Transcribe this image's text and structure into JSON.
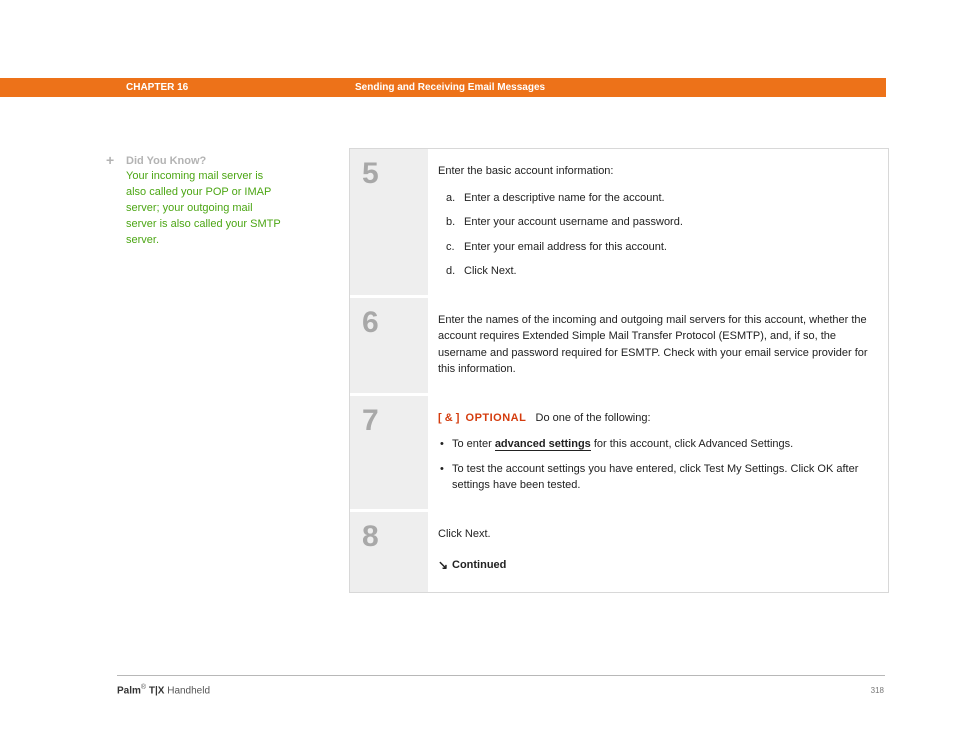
{
  "header": {
    "chapter": "CHAPTER 16",
    "title": "Sending and Receiving Email Messages",
    "bar_color": "#ed7219"
  },
  "sidebar": {
    "icon": "+",
    "heading": "Did You Know?",
    "body": "Your incoming mail server is also called your POP or IMAP server; your outgoing mail server is also called your SMTP server.",
    "heading_color": "#b3b3b3",
    "body_color": "#4ca614"
  },
  "steps": [
    {
      "num": "5",
      "intro": "Enter the basic account information:",
      "sub": [
        {
          "letter": "a.",
          "text": "Enter a descriptive name for the account."
        },
        {
          "letter": "b.",
          "text": "Enter your account username and password."
        },
        {
          "letter": "c.",
          "text": "Enter your email address for this account."
        },
        {
          "letter": "d.",
          "text": "Click Next."
        }
      ]
    },
    {
      "num": "6",
      "intro": "Enter the names of the incoming and outgoing mail servers for this account, whether the account requires Extended Simple Mail Transfer Protocol (ESMTP), and, if so, the username and password required for ESMTP. Check with your email service provider for this information."
    },
    {
      "num": "7",
      "optional_tag": "[ & ]",
      "optional_word": "OPTIONAL",
      "optional_tail": "Do one of the following:",
      "bullets": [
        {
          "pre": "To enter ",
          "link": "advanced settings",
          "post": " for this account, click Advanced Settings."
        },
        {
          "pre": "To test the account settings you have entered, click Test My Settings. Click OK after settings have been tested.",
          "link": "",
          "post": ""
        }
      ]
    },
    {
      "num": "8",
      "intro": "Click Next.",
      "continued_arrow": "↘",
      "continued": "Continued"
    }
  ],
  "styling": {
    "step_num_color": "#a8a8a8",
    "step_num_bg": "#eeeeee",
    "border_color": "#d8d8d8",
    "optional_color": "#d43c0e",
    "body_fontsize": 11
  },
  "footer": {
    "brand_bold": "Palm",
    "reg": "®",
    "model": " T|X",
    "tail": " Handheld",
    "page": "318"
  }
}
